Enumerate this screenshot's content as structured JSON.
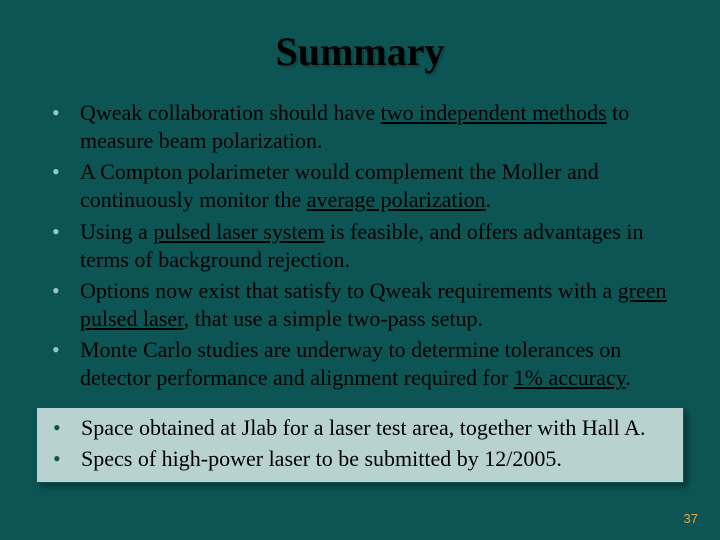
{
  "slide": {
    "background_color": "#0d5555",
    "highlight_background": "#b7d2cf",
    "bullet_color_main": "#96c8c3",
    "bullet_color_highlight": "#0d5555",
    "text_color": "#000000",
    "title_fontsize": 40,
    "body_fontsize": 22,
    "page_number_color": "#e8a83a",
    "title": "Summary",
    "bullets_main": [
      {
        "pre": "Qweak collaboration should have ",
        "u": "two independent methods",
        "post": " to measure beam polarization."
      },
      {
        "pre": "A Compton polarimeter would complement the Moller and continuously monitor the ",
        "u": "average polarization",
        "post": "."
      },
      {
        "pre": "Using a ",
        "u": "pulsed laser system",
        "post": " is feasible, and offers advantages in terms of background rejection."
      },
      {
        "pre": "Options now exist that satisfy to Qweak requirements with a ",
        "u": "green pulsed laser",
        "post": ", that use a simple two-pass setup."
      },
      {
        "pre": "Monte Carlo studies are underway to determine tolerances on detector performance and alignment required for ",
        "u": "1% accuracy",
        "post": "."
      }
    ],
    "bullets_highlight": [
      {
        "text": "Space obtained at Jlab for a laser test area, together with Hall A."
      },
      {
        "text": "Specs of high-power laser to be submitted by 12/2005."
      }
    ],
    "page_number": "37"
  }
}
